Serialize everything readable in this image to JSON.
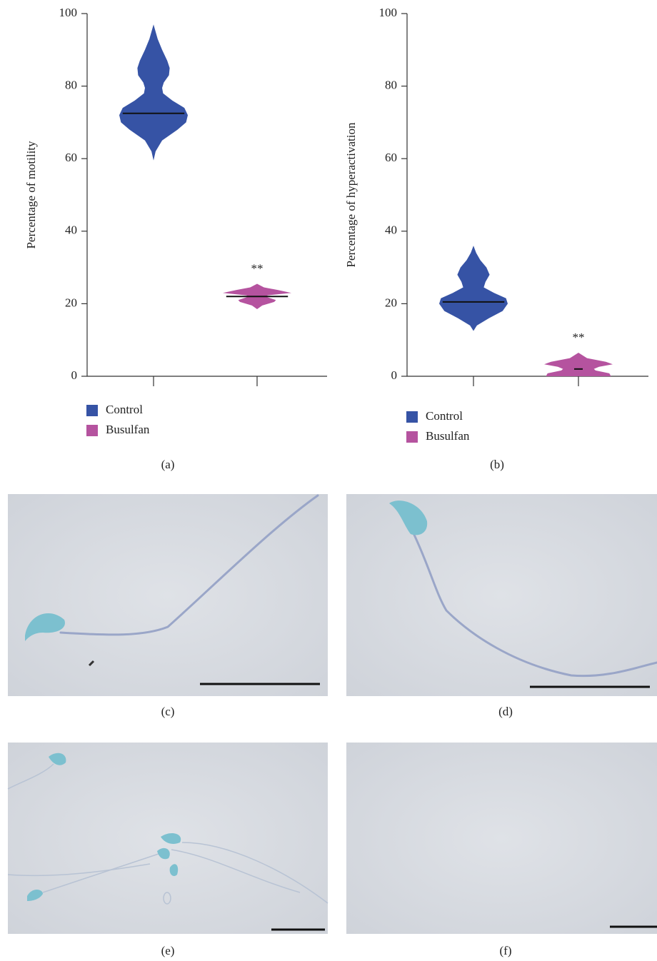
{
  "chart_data": [
    {
      "type": "violin",
      "panel_label": "(a)",
      "y_label": "Percentage of motility",
      "ylim": [
        0,
        100
      ],
      "yticks": [
        0,
        20,
        40,
        60,
        80,
        100
      ],
      "categories": [
        null,
        null
      ],
      "series": [
        {
          "name": "Control",
          "color": "#3653a5",
          "median": 72.5,
          "density": {
            "y": [
              59.5,
              62,
              65,
              68,
              70,
              72,
              74,
              76,
              78,
              79.5,
              81,
              83,
              85,
              87,
              90,
              93,
              97
            ],
            "width": [
              0,
              0.06,
              0.25,
              0.7,
              0.95,
              1.0,
              0.9,
              0.55,
              0.28,
              0.25,
              0.3,
              0.45,
              0.47,
              0.4,
              0.25,
              0.12,
              0
            ]
          }
        },
        {
          "name": "Busulfan",
          "color": "#b5539f",
          "median": 22,
          "significance": "**",
          "density": {
            "y": [
              18.5,
              19.5,
              20.5,
              21,
              21.8,
              22.3,
              23,
              23.8,
              24.5,
              25.5
            ],
            "width": [
              0,
              0.15,
              0.5,
              0.55,
              0.3,
              0.3,
              1.0,
              0.6,
              0.2,
              0
            ]
          }
        }
      ]
    },
    {
      "type": "violin",
      "panel_label": "(b)",
      "y_label": "Percentage of hyperactivation",
      "ylim": [
        0,
        100
      ],
      "yticks": [
        0,
        20,
        40,
        60,
        80,
        100
      ],
      "categories": [
        null,
        null
      ],
      "series": [
        {
          "name": "Control",
          "color": "#3653a5",
          "median": 20.5,
          "density": {
            "y": [
              12.5,
              14,
              16,
              18,
              20,
              21.5,
              23,
              24.5,
              26,
              28,
              30,
              32,
              34,
              36
            ],
            "width": [
              0,
              0.1,
              0.45,
              0.85,
              1.0,
              0.95,
              0.6,
              0.3,
              0.35,
              0.47,
              0.38,
              0.2,
              0.08,
              0
            ]
          }
        },
        {
          "name": "Busulfan",
          "color": "#b5539f",
          "median": 2,
          "significance": "**",
          "density": {
            "y": [
              0,
              0.8,
              1.6,
              2,
              2.6,
              3.3,
              4,
              5,
              6.5
            ],
            "width": [
              0.95,
              0.9,
              0.5,
              0.45,
              0.6,
              1.0,
              0.8,
              0.25,
              0
            ]
          }
        }
      ]
    }
  ],
  "micrographs": [
    {
      "label": "(c)"
    },
    {
      "label": "(d)"
    },
    {
      "label": "(e)"
    },
    {
      "label": "(f)"
    }
  ]
}
